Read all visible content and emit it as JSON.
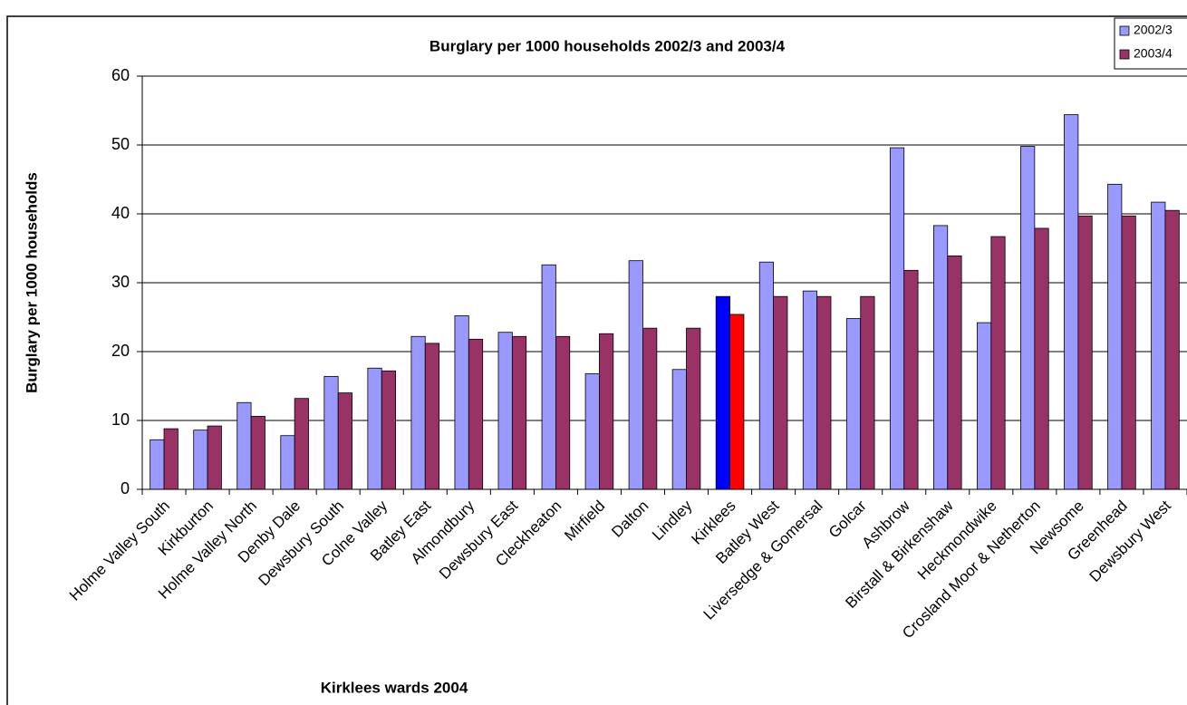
{
  "chart_data": {
    "type": "bar",
    "title": "Burglary per 1000 households 2002/3 and 2003/4",
    "x_label": "Kirklees wards 2004",
    "y_label": "Burglary per 1000 households",
    "categories": [
      "Holme Valley South",
      "Kirkburton",
      "Holme Valley North",
      "Denby Dale",
      "Dewsbury South",
      "Colne Valley",
      "Batley East",
      "Almondbury",
      "Dewsbury East",
      "Cleckheaton",
      "Mirfield",
      "Dalton",
      "Lindley",
      "Kirklees",
      "Batley West",
      "Liversedge & Gomersal",
      "Golcar",
      "Ashbrow",
      "Birstall & Birkenshaw",
      "Heckmondwike",
      "Crosland Moor & Netherton",
      "Newsome",
      "Greenhead",
      "Dewsbury West"
    ],
    "series": [
      {
        "name": "2002/3",
        "color": "#9999ff",
        "colors": [
          "#9999ff",
          "#9999ff",
          "#9999ff",
          "#9999ff",
          "#9999ff",
          "#9999ff",
          "#9999ff",
          "#9999ff",
          "#9999ff",
          "#9999ff",
          "#9999ff",
          "#9999ff",
          "#9999ff",
          "#0000ff",
          "#9999ff",
          "#9999ff",
          "#9999ff",
          "#9999ff",
          "#9999ff",
          "#9999ff",
          "#9999ff",
          "#9999ff",
          "#9999ff",
          "#9999ff"
        ],
        "values": [
          7.2,
          8.6,
          12.6,
          7.8,
          16.4,
          17.6,
          22.2,
          25.2,
          22.8,
          32.6,
          16.8,
          33.2,
          17.4,
          28,
          33,
          28.8,
          24.8,
          49.6,
          38.3,
          24.2,
          49.8,
          54.4,
          44.3,
          41.7
        ]
      },
      {
        "name": "2003/4",
        "color": "#993366",
        "colors": [
          "#993366",
          "#993366",
          "#993366",
          "#993366",
          "#993366",
          "#993366",
          "#993366",
          "#993366",
          "#993366",
          "#993366",
          "#993366",
          "#993366",
          "#993366",
          "#ff0000",
          "#993366",
          "#993366",
          "#993366",
          "#993366",
          "#993366",
          "#993366",
          "#993366",
          "#993366",
          "#993366",
          "#993366"
        ],
        "values": [
          8.8,
          9.2,
          10.6,
          13.2,
          14.0,
          17.2,
          21.2,
          21.8,
          22.2,
          22.2,
          22.6,
          23.4,
          23.4,
          25.4,
          28.0,
          28.0,
          28.0,
          31.8,
          33.9,
          36.7,
          37.9,
          39.7,
          39.7,
          40.5
        ]
      }
    ],
    "ylim": [
      0,
      60
    ],
    "yticks": [
      0,
      10,
      20,
      30,
      40,
      50,
      60
    ],
    "grid": true,
    "legend": "top-right"
  }
}
